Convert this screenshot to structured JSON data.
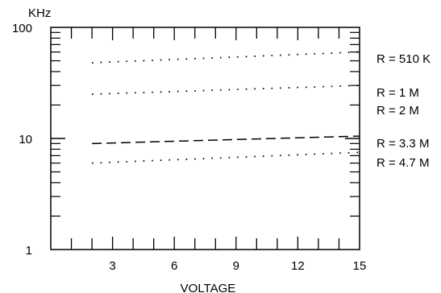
{
  "chart_data": {
    "type": "line",
    "title": "",
    "xlabel": "VOLTAGE",
    "ylabel": "KHz",
    "x_scale": "linear",
    "y_scale": "log",
    "xlim": [
      0,
      15
    ],
    "ylim": [
      1,
      100
    ],
    "x_ticks": [
      3,
      6,
      9,
      12,
      15
    ],
    "x_tick_labels": [
      "3",
      "6",
      "9",
      "12",
      "15"
    ],
    "y_ticks": [
      1,
      10,
      100
    ],
    "y_tick_labels": [
      "1",
      "10",
      "100"
    ],
    "grid": false,
    "legend_placement": "right",
    "series": [
      {
        "name": "R = 510 K",
        "style": "dotted",
        "x": [
          2,
          15
        ],
        "y": [
          48,
          60
        ]
      },
      {
        "name": "R = 1 M",
        "style": "dotted",
        "x": [
          2,
          15
        ],
        "y": [
          25,
          30
        ]
      },
      {
        "name": "R = 2 M",
        "style": "none",
        "x": [],
        "y": []
      },
      {
        "name": "R = 3.3 M",
        "style": "dashed",
        "x": [
          2,
          15
        ],
        "y": [
          9,
          10.5
        ]
      },
      {
        "name": "R = 4.7 M",
        "style": "dotted",
        "x": [
          2,
          15
        ],
        "y": [
          6,
          7.5
        ]
      }
    ]
  }
}
